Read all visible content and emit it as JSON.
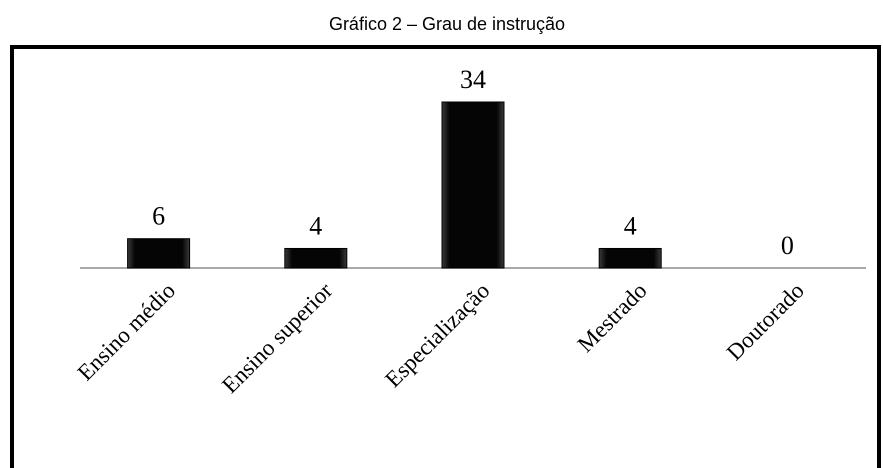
{
  "chart_data": {
    "type": "bar",
    "title": "Gráfico 2 – Grau de instrução",
    "categories": [
      "Ensino médio",
      "Ensino superior",
      "Especialização",
      "Mestrado",
      "Doutorado"
    ],
    "values": [
      6,
      4,
      34,
      4,
      0
    ],
    "color": "#000000"
  }
}
